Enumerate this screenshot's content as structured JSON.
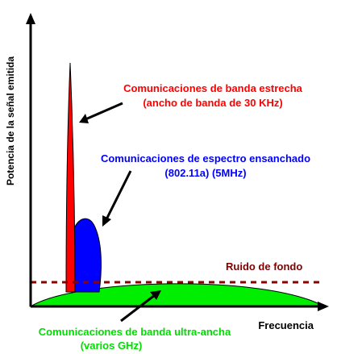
{
  "axes": {
    "y_label": "Potencia de la señal emitida",
    "x_label": "Frecuencia"
  },
  "annotations": {
    "narrowband_line1": "Comunicaciones de banda estrecha",
    "narrowband_line2": "(ancho de banda de 30 KHz)",
    "spread_line1": "Comunicaciones de espectro ensanchado",
    "spread_line2": "(802.11a) (5MHz)",
    "noise": "Ruido de fondo",
    "uwb_line1": "Comunicaciones de banda ultra-ancha",
    "uwb_line2": "(varios GHz)"
  },
  "colors": {
    "narrowband": "#ff0000",
    "spread": "#0000ff",
    "uwb": "#00ee00",
    "noise": "#8b0000",
    "label_red": "#ff0000",
    "label_blue": "#0000ff",
    "label_noise": "#800000",
    "label_green": "#00dd00",
    "axis": "#000000"
  }
}
